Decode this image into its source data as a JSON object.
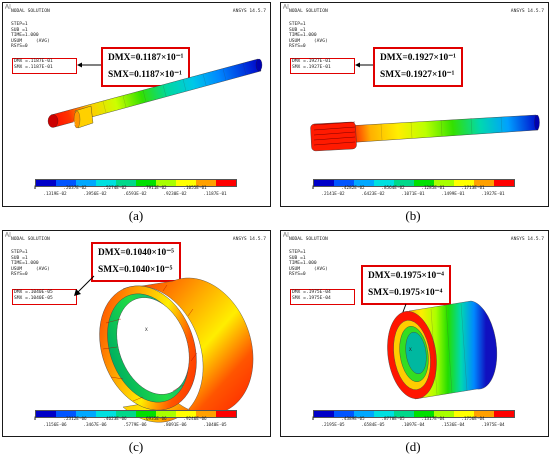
{
  "panels": [
    {
      "title": "NODAL SOLUTION",
      "version": "ANSYS 14.5.7",
      "info": "STEP=1\nSUB =1\nTIME=1.000\nUSUM     (AVG)\nRSYS=0",
      "dmx": "DMX =.1187E-01",
      "smx": "SMX =.1187E-01",
      "callout_dmx": "DMX=0.1187×10⁻¹",
      "callout_smx": "SMX=0.1187×10⁻¹",
      "ticks_top": [
        "0",
        ".2637E-02",
        ".5274E-02",
        ".7911E-02",
        ".1055E-01"
      ],
      "ticks_bot": [
        ".1319E-02",
        ".3956E-02",
        ".6593E-02",
        ".9230E-02",
        ".1187E-01"
      ],
      "caption": "(a)"
    },
    {
      "title": "NODAL SOLUTION",
      "version": "ANSYS 14.5.7",
      "info": "STEP=1\nSUB =1\nTIME=1.000\nUSUM     (AVG)\nRSYS=0",
      "dmx": "DMX =.1927E-01",
      "smx": "SMX =.1927E-01",
      "callout_dmx": "DMX=0.1927×10⁻¹",
      "callout_smx": "SMX=0.1927×10⁻¹",
      "ticks_top": [
        "0",
        ".4282E-02",
        ".8564E-02",
        ".1285E-01",
        ".1713E-01"
      ],
      "ticks_bot": [
        ".2141E-02",
        ".6423E-02",
        ".1071E-01",
        ".1499E-01",
        ".1927E-01"
      ],
      "caption": "(b)"
    },
    {
      "title": "NODAL SOLUTION",
      "version": "ANSYS 14.5.7",
      "info": "STEP=1\nSUB =1\nTIME=1.000\nUSUM     (AVG)\nRSYS=0",
      "dmx": "DMX =.1040E-05",
      "smx": "SMX =.1040E-05",
      "callout_dmx": "DMX=0.1040×10⁻⁵",
      "callout_smx": "SMX=0.1040×10⁻⁵",
      "ticks_top": [
        "0",
        ".2312E-06",
        ".4623E-06",
        ".6935E-06",
        ".9246E-06"
      ],
      "ticks_bot": [
        ".1156E-06",
        ".3467E-06",
        ".5779E-06",
        ".8091E-06",
        ".1040E-05"
      ],
      "caption": "(c)"
    },
    {
      "title": "NODAL SOLUTION",
      "version": "ANSYS 14.5.7",
      "info": "STEP=1\nSUB =1\nTIME=1.000\nUSUM     (AVG)\nRSYS=0",
      "dmx": "DMX =.1975E-04",
      "smx": "SMX =.1975E-04",
      "callout_dmx": "DMX=0.1975×10⁻⁴",
      "callout_smx": "SMX=0.1975×10⁻⁴",
      "ticks_top": [
        "0",
        ".4389E-05",
        ".8778E-05",
        ".1317E-04",
        ".1756E-04"
      ],
      "ticks_bot": [
        ".2195E-05",
        ".6584E-05",
        ".1097E-04",
        ".1536E-04",
        ".1975E-04"
      ],
      "caption": "(d)"
    }
  ],
  "colormap": [
    "#0000c8",
    "#0055ff",
    "#00a8ff",
    "#00e0e0",
    "#00d88a",
    "#00e000",
    "#a8ff00",
    "#ffff00",
    "#ffa000",
    "#ff0000"
  ],
  "axis_label": "X"
}
